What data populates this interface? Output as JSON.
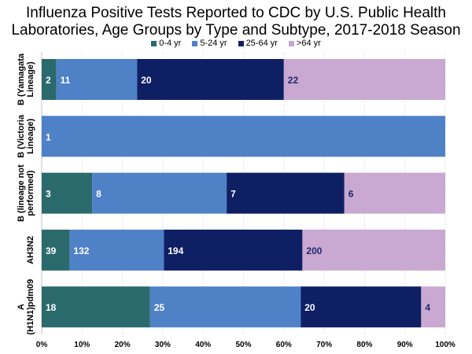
{
  "chart_data": {
    "type": "bar",
    "orientation": "horizontal",
    "stacked": "percent",
    "title_line1": "Influenza Positive Tests Reported to CDC by U.S. Public Health",
    "title_line2": "Laboratories, Age Groups by Type and Subtype, 2017-2018 Season",
    "categories": [
      [
        "B (Yamagata",
        "Lineage)"
      ],
      [
        "B (Victoria",
        "Lineage)"
      ],
      [
        "B (lineage not",
        "performed)"
      ],
      [
        "AH3N2"
      ],
      [
        "A",
        "(H1N1)pdm09"
      ]
    ],
    "series": [
      {
        "name": "0-4 yr",
        "color": "#2b6a6c",
        "label_color": "#ffffff",
        "values": [
          2,
          0,
          3,
          39,
          18
        ]
      },
      {
        "name": "5-24 yr",
        "color": "#4f81c7",
        "label_color": "#ffffff",
        "values": [
          11,
          1,
          8,
          132,
          25
        ]
      },
      {
        "name": "25-64 yr",
        "color": "#0e1f63",
        "label_color": "#ffffff",
        "values": [
          20,
          0,
          7,
          194,
          20
        ]
      },
      {
        "name": ">64 yr",
        "color": "#c9a8d2",
        "label_color": "#1f2a6b",
        "values": [
          22,
          0,
          6,
          200,
          4
        ]
      }
    ],
    "x_ticks": [
      "0%",
      "10%",
      "20%",
      "30%",
      "40%",
      "50%",
      "60%",
      "70%",
      "80%",
      "90%",
      "100%"
    ],
    "xlim": [
      0,
      100
    ],
    "grid": "vertical",
    "legend_position": "top"
  }
}
